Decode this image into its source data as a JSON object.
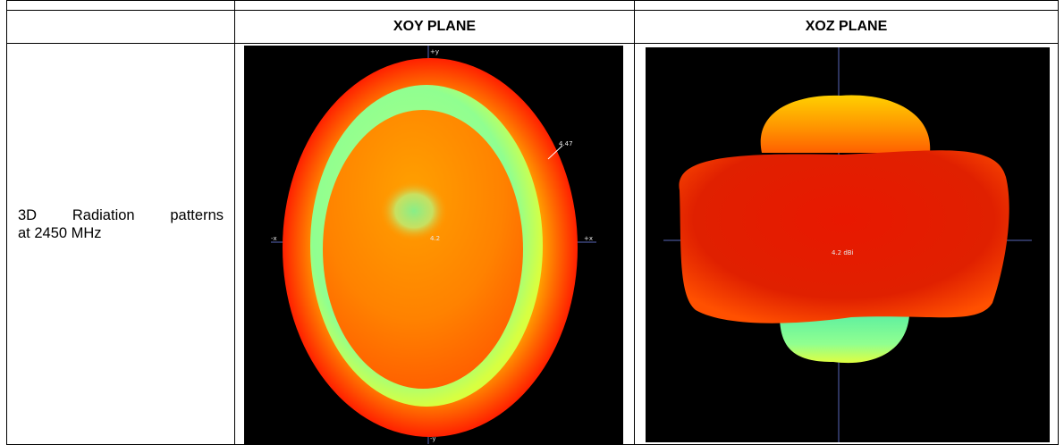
{
  "table": {
    "headers": {
      "col2": "XOY PLANE",
      "col3": "XOZ PLANE"
    },
    "row_label_line1": [
      "3D",
      "Radiation",
      "patterns"
    ],
    "row_label_line2": "at 2450 MHz"
  },
  "xoy_plot": {
    "axis_labels": {
      "top": "+y",
      "bottom": "-y",
      "left": "-x",
      "right": "+x"
    },
    "readout": "4.47",
    "center_mark": "4.2",
    "colors": {
      "outer": "#ff2a00",
      "ring": "#90ff90",
      "inner": "#ff8800",
      "center": "#88ee88",
      "background": "#000000"
    }
  },
  "xoz_plot": {
    "center_mark": "4.2 dBi",
    "colors": {
      "main_lobe": "#e01800",
      "top_lobe": "#ffb000",
      "bottom_lobe": "#80ffb0",
      "background": "#000000"
    }
  }
}
